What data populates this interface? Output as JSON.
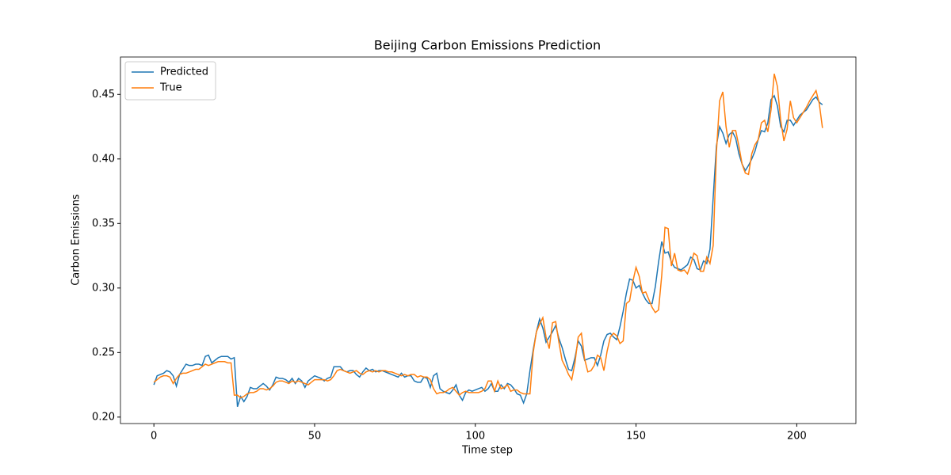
{
  "chart_data": {
    "type": "line",
    "title": "Beijing Carbon Emissions Prediction",
    "x_label": "Time step",
    "y_label": "Carbon Emissions",
    "x": [
      0,
      1,
      2,
      3,
      4,
      5,
      6,
      7,
      8,
      9,
      10,
      11,
      12,
      13,
      14,
      15,
      16,
      17,
      18,
      19,
      20,
      21,
      22,
      23,
      24,
      25,
      26,
      27,
      28,
      29,
      30,
      31,
      32,
      33,
      34,
      35,
      36,
      37,
      38,
      39,
      40,
      41,
      42,
      43,
      44,
      45,
      46,
      47,
      48,
      49,
      50,
      51,
      52,
      53,
      54,
      55,
      56,
      57,
      58,
      59,
      60,
      61,
      62,
      63,
      64,
      65,
      66,
      67,
      68,
      69,
      70,
      71,
      72,
      73,
      74,
      75,
      76,
      77,
      78,
      79,
      80,
      81,
      82,
      83,
      84,
      85,
      86,
      87,
      88,
      89,
      90,
      91,
      92,
      93,
      94,
      95,
      96,
      97,
      98,
      99,
      100,
      101,
      102,
      103,
      104,
      105,
      106,
      107,
      108,
      109,
      110,
      111,
      112,
      113,
      114,
      115,
      116,
      117,
      118,
      119,
      120,
      121,
      122,
      123,
      124,
      125,
      126,
      127,
      128,
      129,
      130,
      131,
      132,
      133,
      134,
      135,
      136,
      137,
      138,
      139,
      140,
      141,
      142,
      143,
      144,
      145,
      146,
      147,
      148,
      149,
      150,
      151,
      152,
      153,
      154,
      155,
      156,
      157,
      158,
      159,
      160,
      161,
      162,
      163,
      164,
      165,
      166,
      167,
      168,
      169,
      170,
      171,
      172,
      173,
      174,
      175,
      176,
      177,
      178,
      179,
      180,
      181,
      182,
      183,
      184,
      185,
      186,
      187,
      188,
      189,
      190,
      191,
      192,
      193,
      194,
      195,
      196,
      197,
      198,
      199,
      200,
      201,
      202,
      203,
      204,
      205,
      206,
      207,
      208
    ],
    "series": [
      {
        "name": "Predicted",
        "color": "#1f77b4",
        "values": [
          0.225,
          0.232,
          0.233,
          0.234,
          0.236,
          0.235,
          0.232,
          0.224,
          0.233,
          0.237,
          0.241,
          0.24,
          0.24,
          0.241,
          0.241,
          0.24,
          0.247,
          0.248,
          0.242,
          0.244,
          0.246,
          0.247,
          0.247,
          0.247,
          0.245,
          0.246,
          0.208,
          0.216,
          0.212,
          0.216,
          0.223,
          0.222,
          0.222,
          0.224,
          0.226,
          0.224,
          0.221,
          0.225,
          0.231,
          0.23,
          0.23,
          0.229,
          0.227,
          0.23,
          0.226,
          0.23,
          0.228,
          0.223,
          0.228,
          0.23,
          0.232,
          0.231,
          0.23,
          0.228,
          0.23,
          0.231,
          0.239,
          0.239,
          0.239,
          0.236,
          0.235,
          0.236,
          0.236,
          0.233,
          0.231,
          0.235,
          0.238,
          0.236,
          0.237,
          0.235,
          0.236,
          0.236,
          0.235,
          0.234,
          0.233,
          0.232,
          0.231,
          0.234,
          0.231,
          0.232,
          0.232,
          0.228,
          0.227,
          0.227,
          0.231,
          0.23,
          0.223,
          0.232,
          0.234,
          0.222,
          0.22,
          0.219,
          0.218,
          0.221,
          0.225,
          0.217,
          0.213,
          0.219,
          0.221,
          0.22,
          0.221,
          0.222,
          0.223,
          0.22,
          0.222,
          0.226,
          0.22,
          0.22,
          0.225,
          0.222,
          0.226,
          0.225,
          0.222,
          0.218,
          0.217,
          0.211,
          0.218,
          0.236,
          0.252,
          0.266,
          0.276,
          0.269,
          0.258,
          0.262,
          0.266,
          0.271,
          0.261,
          0.254,
          0.245,
          0.237,
          0.236,
          0.246,
          0.259,
          0.255,
          0.244,
          0.245,
          0.246,
          0.246,
          0.24,
          0.248,
          0.259,
          0.264,
          0.265,
          0.262,
          0.26,
          0.27,
          0.282,
          0.296,
          0.307,
          0.306,
          0.3,
          0.302,
          0.296,
          0.291,
          0.288,
          0.288,
          0.301,
          0.32,
          0.336,
          0.327,
          0.328,
          0.32,
          0.316,
          0.315,
          0.314,
          0.316,
          0.318,
          0.324,
          0.322,
          0.315,
          0.314,
          0.321,
          0.319,
          0.33,
          0.37,
          0.41,
          0.425,
          0.42,
          0.412,
          0.419,
          0.421,
          0.416,
          0.404,
          0.396,
          0.391,
          0.395,
          0.4,
          0.406,
          0.415,
          0.422,
          0.421,
          0.428,
          0.446,
          0.449,
          0.441,
          0.425,
          0.421,
          0.43,
          0.43,
          0.426,
          0.43,
          0.434,
          0.436,
          0.438,
          0.442,
          0.446,
          0.448,
          0.444,
          0.442
        ]
      },
      {
        "name": "True",
        "color": "#ff7f0e",
        "values": [
          0.227,
          0.229,
          0.231,
          0.232,
          0.232,
          0.231,
          0.226,
          0.23,
          0.233,
          0.234,
          0.234,
          0.235,
          0.236,
          0.237,
          0.237,
          0.239,
          0.241,
          0.24,
          0.241,
          0.242,
          0.243,
          0.243,
          0.243,
          0.242,
          0.242,
          0.217,
          0.217,
          0.215,
          0.216,
          0.218,
          0.219,
          0.219,
          0.22,
          0.222,
          0.222,
          0.221,
          0.222,
          0.224,
          0.227,
          0.228,
          0.228,
          0.227,
          0.226,
          0.228,
          0.227,
          0.228,
          0.227,
          0.226,
          0.225,
          0.227,
          0.229,
          0.229,
          0.229,
          0.229,
          0.228,
          0.229,
          0.232,
          0.236,
          0.237,
          0.236,
          0.235,
          0.234,
          0.235,
          0.236,
          0.234,
          0.233,
          0.235,
          0.236,
          0.235,
          0.236,
          0.235,
          0.236,
          0.236,
          0.235,
          0.235,
          0.234,
          0.233,
          0.232,
          0.233,
          0.232,
          0.233,
          0.233,
          0.231,
          0.232,
          0.231,
          0.231,
          0.229,
          0.222,
          0.218,
          0.219,
          0.219,
          0.22,
          0.222,
          0.223,
          0.22,
          0.217,
          0.219,
          0.22,
          0.219,
          0.219,
          0.219,
          0.219,
          0.22,
          0.222,
          0.228,
          0.228,
          0.22,
          0.228,
          0.222,
          0.223,
          0.225,
          0.22,
          0.221,
          0.221,
          0.219,
          0.218,
          0.218,
          0.218,
          0.25,
          0.266,
          0.272,
          0.277,
          0.262,
          0.253,
          0.273,
          0.274,
          0.258,
          0.244,
          0.239,
          0.233,
          0.229,
          0.242,
          0.262,
          0.265,
          0.245,
          0.235,
          0.236,
          0.24,
          0.248,
          0.246,
          0.236,
          0.251,
          0.262,
          0.265,
          0.263,
          0.257,
          0.259,
          0.288,
          0.29,
          0.305,
          0.316,
          0.309,
          0.296,
          0.297,
          0.291,
          0.285,
          0.281,
          0.283,
          0.31,
          0.347,
          0.346,
          0.317,
          0.327,
          0.314,
          0.313,
          0.314,
          0.311,
          0.318,
          0.327,
          0.325,
          0.313,
          0.313,
          0.324,
          0.319,
          0.333,
          0.405,
          0.445,
          0.452,
          0.425,
          0.409,
          0.422,
          0.422,
          0.41,
          0.396,
          0.389,
          0.388,
          0.404,
          0.411,
          0.415,
          0.428,
          0.43,
          0.421,
          0.438,
          0.466,
          0.456,
          0.43,
          0.414,
          0.423,
          0.445,
          0.432,
          0.428,
          0.432,
          0.436,
          0.44,
          0.445,
          0.449,
          0.453,
          0.443,
          0.424
        ]
      }
    ],
    "xlim": [
      -10.4,
      218.4
    ],
    "xticks": [
      0,
      50,
      100,
      150,
      200
    ],
    "ylim": [
      0.195,
      0.479
    ],
    "yticks": [
      {
        "value": 0.2,
        "label": "0.20"
      },
      0.25,
      {
        "value": 0.3,
        "label": "0.30"
      },
      0.35,
      {
        "value": 0.4,
        "label": "0.40"
      },
      0.45
    ],
    "legend": "upper left",
    "grid": false
  }
}
